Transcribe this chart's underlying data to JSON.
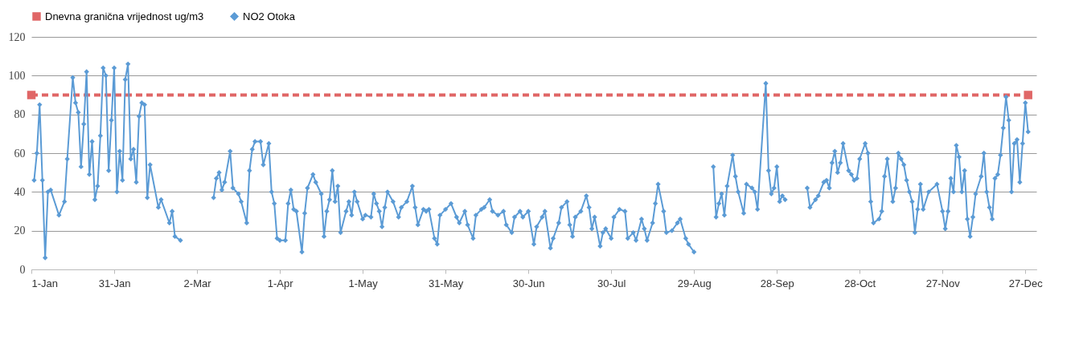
{
  "chart_data": {
    "type": "line",
    "series": [
      {
        "name": "Dnevna granična vrijednost ug/m3",
        "color": "#e06666",
        "marker": "square",
        "line_style": "dashed",
        "x": [
          "--01-01",
          "--12-28"
        ],
        "values": [
          90,
          90
        ]
      },
      {
        "name": "NO2 Otoka",
        "color": "#5b9bd5",
        "marker": "diamond",
        "line_style": "solid",
        "x": [
          "--01-02",
          "--01-03",
          "--01-04",
          "--01-05",
          "--01-06",
          "--01-07",
          "--01-08",
          "--01-11",
          "--01-13",
          "--01-14",
          "--01-16",
          "--01-17",
          "--01-18",
          "--01-19",
          "--01-20",
          "--01-21",
          "--01-22",
          "--01-23",
          "--01-24",
          "--01-25",
          "--01-26",
          "--01-27",
          "--01-28",
          "--01-29",
          "--01-30",
          "--01-31",
          "--02-01",
          "--02-02",
          "--02-03",
          "--02-04",
          "--02-05",
          "--02-06",
          "--02-07",
          "--02-08",
          "--02-09",
          "--02-10",
          "--02-11",
          "--02-12",
          "--02-13",
          "--02-16",
          "--02-17",
          "--02-20",
          "--02-21",
          "--02-22",
          "--02-24",
          "--03-01",
          "--03-08",
          "--03-09",
          "--03-10",
          "--03-11",
          "--03-12",
          "--03-14",
          "--03-15",
          "--03-17",
          "--03-18",
          "--03-20",
          "--03-21",
          "--03-22",
          "--03-23",
          "--03-25",
          "--03-26",
          "--03-28",
          "--03-29",
          "--03-30",
          "--03-31",
          "--04-01",
          "--04-03",
          "--04-04",
          "--04-05",
          "--04-06",
          "--04-07",
          "--04-09",
          "--04-10",
          "--04-11",
          "--04-13",
          "--04-14",
          "--04-16",
          "--04-17",
          "--04-18",
          "--04-19",
          "--04-20",
          "--04-21",
          "--04-22",
          "--04-23",
          "--04-25",
          "--04-26",
          "--04-27",
          "--04-28",
          "--04-29",
          "--05-01",
          "--05-02",
          "--05-04",
          "--05-05",
          "--05-06",
          "--05-07",
          "--05-08",
          "--05-09",
          "--05-10",
          "--05-12",
          "--05-14",
          "--05-15",
          "--05-17",
          "--05-19",
          "--05-20",
          "--05-21",
          "--05-23",
          "--05-24",
          "--05-25",
          "--05-27",
          "--05-28",
          "--05-29",
          "--05-31",
          "--06-02",
          "--06-04",
          "--06-05",
          "--06-07",
          "--06-08",
          "--06-10",
          "--06-11",
          "--06-13",
          "--06-14",
          "--06-16",
          "--06-17",
          "--06-19",
          "--06-21",
          "--06-22",
          "--06-24",
          "--06-25",
          "--06-27",
          "--06-28",
          "--06-30",
          "--07-02",
          "--07-03",
          "--07-05",
          "--07-06",
          "--07-08",
          "--07-09",
          "--07-11",
          "--07-12",
          "--07-14",
          "--07-15",
          "--07-16",
          "--07-17",
          "--07-19",
          "--07-21",
          "--07-22",
          "--07-23",
          "--07-24",
          "--07-26",
          "--07-27",
          "--07-28",
          "--07-30",
          "--07-31",
          "--08-02",
          "--08-04",
          "--08-05",
          "--08-07",
          "--08-08",
          "--08-10",
          "--08-11",
          "--08-12",
          "--08-14",
          "--08-15",
          "--08-16",
          "--08-18",
          "--08-19",
          "--08-21",
          "--08-23",
          "--08-24",
          "--08-26",
          "--08-27",
          "--08-29",
          "--09-02",
          "--09-05",
          "--09-06",
          "--09-07",
          "--09-08",
          "--09-09",
          "--09-10",
          "--09-12",
          "--09-13",
          "--09-14",
          "--09-16",
          "--09-17",
          "--09-19",
          "--09-20",
          "--09-21",
          "--09-24",
          "--09-25",
          "--09-26",
          "--09-27",
          "--09-28",
          "--09-29",
          "--09-30",
          "--10-01",
          "--10-05",
          "--10-09",
          "--10-10",
          "--10-12",
          "--10-13",
          "--10-15",
          "--10-16",
          "--10-17",
          "--10-18",
          "--10-19",
          "--10-20",
          "--10-21",
          "--10-22",
          "--10-24",
          "--10-25",
          "--10-26",
          "--10-27",
          "--10-28",
          "--10-30",
          "--10-31",
          "--11-01",
          "--11-02",
          "--11-04",
          "--11-05",
          "--11-06",
          "--11-07",
          "--11-09",
          "--11-10",
          "--11-11",
          "--11-12",
          "--11-13",
          "--11-14",
          "--11-15",
          "--11-16",
          "--11-17",
          "--11-18",
          "--11-19",
          "--11-20",
          "--11-22",
          "--11-25",
          "--11-27",
          "--11-28",
          "--11-29",
          "--11-30",
          "--12-01",
          "--12-02",
          "--12-03",
          "--12-04",
          "--12-05",
          "--12-06",
          "--12-07",
          "--12-08",
          "--12-09",
          "--12-11",
          "--12-12",
          "--12-13",
          "--12-14",
          "--12-15",
          "--12-16",
          "--12-17",
          "--12-18",
          "--12-19",
          "--12-20",
          "--12-21",
          "--12-22",
          "--12-23",
          "--12-24",
          "--12-25",
          "--12-26",
          "--12-27",
          "--12-28"
        ],
        "values": [
          46,
          60,
          85,
          46,
          6,
          40,
          41,
          28,
          35,
          57,
          99,
          86,
          81,
          53,
          75,
          102,
          49,
          66,
          36,
          43,
          69,
          104,
          100,
          51,
          77,
          104,
          40,
          61,
          46,
          98,
          106,
          57,
          62,
          45,
          79,
          86,
          85,
          37,
          54,
          32,
          36,
          24,
          30,
          17,
          15,
          null,
          37,
          47,
          50,
          41,
          45,
          61,
          42,
          39,
          35,
          24,
          51,
          62,
          66,
          66,
          54,
          65,
          40,
          34,
          16,
          15,
          15,
          34,
          41,
          31,
          30,
          9,
          29,
          42,
          49,
          45,
          39,
          17,
          30,
          36,
          51,
          35,
          43,
          19,
          30,
          35,
          28,
          40,
          35,
          26,
          28,
          27,
          39,
          34,
          30,
          22,
          32,
          40,
          35,
          27,
          32,
          35,
          43,
          32,
          23,
          31,
          30,
          31,
          16,
          13,
          28,
          31,
          34,
          27,
          24,
          30,
          23,
          16,
          28,
          31,
          32,
          36,
          30,
          28,
          30,
          23,
          19,
          27,
          30,
          27,
          30,
          13,
          22,
          27,
          30,
          11,
          16,
          24,
          32,
          35,
          23,
          17,
          27,
          30,
          38,
          32,
          21,
          27,
          12,
          19,
          21,
          16,
          27,
          31,
          30,
          16,
          19,
          15,
          26,
          21,
          15,
          24,
          34,
          44,
          30,
          19,
          20,
          24,
          26,
          16,
          13,
          9,
          null,
          53,
          27,
          34,
          39,
          28,
          43,
          59,
          48,
          40,
          29,
          44,
          42,
          40,
          31,
          96,
          51,
          39,
          42,
          53,
          35,
          38,
          36,
          null,
          42,
          32,
          36,
          38,
          45,
          46,
          42,
          55,
          61,
          50,
          55,
          65,
          51,
          49,
          46,
          47,
          57,
          65,
          60,
          35,
          24,
          26,
          30,
          48,
          57,
          35,
          42,
          60,
          57,
          54,
          46,
          40,
          35,
          19,
          31,
          44,
          31,
          40,
          44,
          30,
          21,
          30,
          47,
          40,
          64,
          58,
          40,
          51,
          26,
          17,
          27,
          39,
          48,
          60,
          40,
          32,
          26,
          47,
          49,
          59,
          73,
          89,
          77,
          40,
          65,
          67,
          45,
          65,
          86,
          71
        ]
      }
    ],
    "xlim": [
      "--01-01",
      "--12-31"
    ],
    "xticks": [
      {
        "value": "--01-01",
        "label": "1-Jan"
      },
      {
        "value": "--01-31",
        "label": "31-Jan"
      },
      {
        "value": "--03-02",
        "label": "2-Mar"
      },
      {
        "value": "--04-01",
        "label": "1-Apr"
      },
      {
        "value": "--05-01",
        "label": "1-May"
      },
      {
        "value": "--05-31",
        "label": "31-May"
      },
      {
        "value": "--06-30",
        "label": "30-Jun"
      },
      {
        "value": "--07-30",
        "label": "30-Jul"
      },
      {
        "value": "--08-29",
        "label": "29-Aug"
      },
      {
        "value": "--09-28",
        "label": "28-Sep"
      },
      {
        "value": "--10-28",
        "label": "28-Oct"
      },
      {
        "value": "--11-27",
        "label": "27-Nov"
      },
      {
        "value": "--12-27",
        "label": "27-Dec"
      }
    ],
    "ylim": [
      0,
      120
    ],
    "yticks": [
      0,
      20,
      40,
      60,
      80,
      100,
      120
    ],
    "grid": "y",
    "legend": "top"
  }
}
